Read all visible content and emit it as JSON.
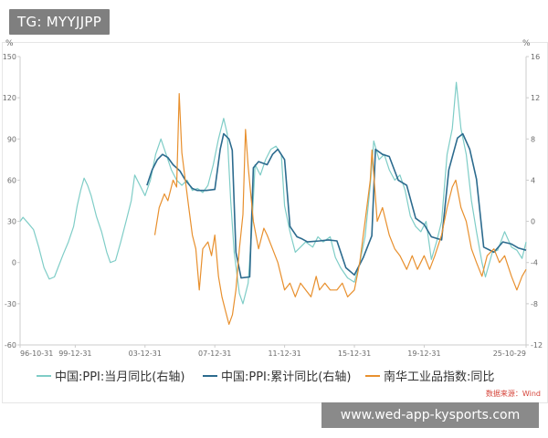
{
  "watermark": {
    "label": "TG: MYYJJPP"
  },
  "footer": {
    "label": "www.wed-app-kysports.com"
  },
  "source_note": "数据来源：Wind",
  "colors": {
    "ppi_yoy": "#7fcdc7",
    "ppi_cum": "#2c6b8e",
    "nanhua": "#e8902e",
    "axis": "#cccccc",
    "tick_text": "#6b6b6b",
    "source": "#d6453b"
  },
  "chart_data": {
    "type": "line",
    "title": "",
    "xlabel": "",
    "ylabel_left": "%",
    "ylabel_right": "%",
    "x_ticks": [
      "96-10-31",
      "99-12-31",
      "03-12-31",
      "07-12-31",
      "11-12-31",
      "15-12-31",
      "19-12-31",
      "25-10-29"
    ],
    "x_tick_years": [
      1996.83,
      1999.99,
      2003.99,
      2007.99,
      2011.99,
      2015.99,
      2019.99,
      2025.83
    ],
    "xlim": [
      1996.83,
      2025.83
    ],
    "ylim_left": [
      -60,
      150
    ],
    "yticks_left": [
      "150",
      "120",
      "90",
      "60",
      "30",
      "0",
      "-30",
      "-60"
    ],
    "ylim_right": [
      -12,
      16
    ],
    "yticks_right": [
      "16",
      "12",
      "8",
      "4",
      "0",
      "-4",
      "-8",
      "-12"
    ],
    "legend_position": "bottom",
    "series": [
      {
        "name": "中国:PPI:当月同比(右轴)",
        "axis": "right",
        "color": "#7fcdc7",
        "points": [
          [
            1996.83,
            0.0
          ],
          [
            1997.0,
            0.4
          ],
          [
            1997.3,
            -0.2
          ],
          [
            1997.6,
            -0.8
          ],
          [
            1997.9,
            -2.5
          ],
          [
            1998.2,
            -4.5
          ],
          [
            1998.5,
            -5.6
          ],
          [
            1998.8,
            -5.4
          ],
          [
            1999.0,
            -4.5
          ],
          [
            1999.3,
            -3.2
          ],
          [
            1999.6,
            -2.0
          ],
          [
            1999.9,
            -0.5
          ],
          [
            2000.1,
            1.5
          ],
          [
            2000.3,
            3.0
          ],
          [
            2000.5,
            4.2
          ],
          [
            2000.7,
            3.5
          ],
          [
            2000.9,
            2.5
          ],
          [
            2001.2,
            0.5
          ],
          [
            2001.5,
            -1.0
          ],
          [
            2001.8,
            -3.0
          ],
          [
            2002.0,
            -4.0
          ],
          [
            2002.3,
            -3.8
          ],
          [
            2002.6,
            -2.0
          ],
          [
            2002.9,
            0.0
          ],
          [
            2003.2,
            2.0
          ],
          [
            2003.4,
            4.5
          ],
          [
            2003.7,
            3.5
          ],
          [
            2003.99,
            2.5
          ],
          [
            2004.3,
            4.0
          ],
          [
            2004.6,
            6.5
          ],
          [
            2004.9,
            8.0
          ],
          [
            2005.2,
            6.5
          ],
          [
            2005.5,
            5.0
          ],
          [
            2005.8,
            4.0
          ],
          [
            2006.1,
            3.5
          ],
          [
            2006.4,
            4.0
          ],
          [
            2006.7,
            3.0
          ],
          [
            2007.0,
            3.2
          ],
          [
            2007.3,
            2.8
          ],
          [
            2007.6,
            3.5
          ],
          [
            2007.9,
            5.5
          ],
          [
            2008.2,
            8.0
          ],
          [
            2008.5,
            10.0
          ],
          [
            2008.7,
            8.5
          ],
          [
            2008.9,
            2.0
          ],
          [
            2009.1,
            -3.0
          ],
          [
            2009.4,
            -7.0
          ],
          [
            2009.6,
            -8.0
          ],
          [
            2009.9,
            -6.0
          ],
          [
            2010.1,
            -1.0
          ],
          [
            2010.3,
            5.5
          ],
          [
            2010.6,
            4.5
          ],
          [
            2010.9,
            6.0
          ],
          [
            2011.2,
            7.0
          ],
          [
            2011.5,
            7.3
          ],
          [
            2011.8,
            6.5
          ],
          [
            2011.99,
            1.5
          ],
          [
            2012.3,
            -1.0
          ],
          [
            2012.6,
            -3.0
          ],
          [
            2012.9,
            -2.5
          ],
          [
            2013.2,
            -2.0
          ],
          [
            2013.6,
            -2.5
          ],
          [
            2013.9,
            -1.5
          ],
          [
            2014.2,
            -2.0
          ],
          [
            2014.6,
            -1.5
          ],
          [
            2014.9,
            -3.5
          ],
          [
            2015.2,
            -4.5
          ],
          [
            2015.6,
            -5.5
          ],
          [
            2015.99,
            -5.9
          ],
          [
            2016.3,
            -4.0
          ],
          [
            2016.6,
            -1.5
          ],
          [
            2016.9,
            3.5
          ],
          [
            2017.1,
            7.8
          ],
          [
            2017.4,
            6.0
          ],
          [
            2017.7,
            6.5
          ],
          [
            2017.99,
            5.0
          ],
          [
            2018.3,
            4.0
          ],
          [
            2018.6,
            4.5
          ],
          [
            2018.9,
            3.0
          ],
          [
            2019.2,
            0.5
          ],
          [
            2019.5,
            -0.5
          ],
          [
            2019.8,
            -1.0
          ],
          [
            2020.1,
            0.0
          ],
          [
            2020.4,
            -3.7
          ],
          [
            2020.7,
            -2.0
          ],
          [
            2020.99,
            0.0
          ],
          [
            2021.3,
            6.5
          ],
          [
            2021.6,
            9.0
          ],
          [
            2021.83,
            13.5
          ],
          [
            2022.1,
            9.0
          ],
          [
            2022.4,
            6.5
          ],
          [
            2022.7,
            2.0
          ],
          [
            2022.99,
            -1.0
          ],
          [
            2023.3,
            -4.0
          ],
          [
            2023.5,
            -5.4
          ],
          [
            2023.9,
            -3.0
          ],
          [
            2024.2,
            -2.8
          ],
          [
            2024.6,
            -1.0
          ],
          [
            2024.99,
            -2.5
          ],
          [
            2025.3,
            -2.8
          ],
          [
            2025.6,
            -3.6
          ],
          [
            2025.83,
            -2.0
          ]
        ]
      },
      {
        "name": "中国:PPI:累计同比(右轴)",
        "axis": "right",
        "color": "#2c6b8e",
        "points": [
          [
            2004.1,
            3.5
          ],
          [
            2004.4,
            5.0
          ],
          [
            2004.7,
            6.0
          ],
          [
            2004.99,
            6.5
          ],
          [
            2005.3,
            6.2
          ],
          [
            2005.6,
            5.5
          ],
          [
            2005.99,
            4.9
          ],
          [
            2006.3,
            4.0
          ],
          [
            2006.7,
            3.2
          ],
          [
            2006.99,
            3.0
          ],
          [
            2007.5,
            3.0
          ],
          [
            2007.99,
            3.1
          ],
          [
            2008.3,
            7.0
          ],
          [
            2008.5,
            8.5
          ],
          [
            2008.8,
            8.0
          ],
          [
            2008.99,
            6.9
          ],
          [
            2009.2,
            -3.0
          ],
          [
            2009.5,
            -5.5
          ],
          [
            2009.99,
            -5.4
          ],
          [
            2010.2,
            5.2
          ],
          [
            2010.5,
            5.8
          ],
          [
            2010.99,
            5.5
          ],
          [
            2011.3,
            6.5
          ],
          [
            2011.6,
            7.0
          ],
          [
            2011.99,
            6.0
          ],
          [
            2012.3,
            -0.5
          ],
          [
            2012.7,
            -1.5
          ],
          [
            2012.99,
            -1.7
          ],
          [
            2013.3,
            -2.0
          ],
          [
            2013.99,
            -1.9
          ],
          [
            2014.5,
            -1.8
          ],
          [
            2014.99,
            -1.9
          ],
          [
            2015.5,
            -4.5
          ],
          [
            2015.99,
            -5.2
          ],
          [
            2016.5,
            -3.5
          ],
          [
            2016.99,
            -1.4
          ],
          [
            2017.2,
            7.0
          ],
          [
            2017.6,
            6.5
          ],
          [
            2017.99,
            6.3
          ],
          [
            2018.5,
            4.0
          ],
          [
            2018.99,
            3.5
          ],
          [
            2019.5,
            0.3
          ],
          [
            2019.99,
            -0.3
          ],
          [
            2020.4,
            -1.5
          ],
          [
            2020.99,
            -1.8
          ],
          [
            2021.4,
            5.0
          ],
          [
            2021.9,
            8.1
          ],
          [
            2022.2,
            8.5
          ],
          [
            2022.6,
            7.0
          ],
          [
            2022.99,
            4.1
          ],
          [
            2023.4,
            -2.5
          ],
          [
            2023.99,
            -3.0
          ],
          [
            2024.5,
            -2.0
          ],
          [
            2024.99,
            -2.2
          ],
          [
            2025.4,
            -2.6
          ],
          [
            2025.83,
            -2.8
          ]
        ]
      },
      {
        "name": "南华工业品指数:同比",
        "axis": "left",
        "color": "#e8902e",
        "points": [
          [
            2004.55,
            20
          ],
          [
            2004.8,
            40
          ],
          [
            2005.1,
            50
          ],
          [
            2005.3,
            45
          ],
          [
            2005.6,
            60
          ],
          [
            2005.8,
            55
          ],
          [
            2005.95,
            123
          ],
          [
            2006.1,
            80
          ],
          [
            2006.3,
            60
          ],
          [
            2006.5,
            40
          ],
          [
            2006.7,
            20
          ],
          [
            2006.9,
            10
          ],
          [
            2007.1,
            -20
          ],
          [
            2007.3,
            10
          ],
          [
            2007.6,
            15
          ],
          [
            2007.8,
            5
          ],
          [
            2007.99,
            20
          ],
          [
            2008.2,
            -10
          ],
          [
            2008.4,
            -25
          ],
          [
            2008.6,
            -35
          ],
          [
            2008.8,
            -45
          ],
          [
            2009.0,
            -38
          ],
          [
            2009.2,
            -20
          ],
          [
            2009.4,
            10
          ],
          [
            2009.6,
            35
          ],
          [
            2009.75,
            97
          ],
          [
            2009.9,
            70
          ],
          [
            2010.2,
            30
          ],
          [
            2010.5,
            10
          ],
          [
            2010.8,
            25
          ],
          [
            2010.99,
            20
          ],
          [
            2011.3,
            10
          ],
          [
            2011.6,
            0
          ],
          [
            2011.99,
            -20
          ],
          [
            2012.3,
            -15
          ],
          [
            2012.6,
            -25
          ],
          [
            2012.9,
            -15
          ],
          [
            2013.2,
            -20
          ],
          [
            2013.5,
            -25
          ],
          [
            2013.8,
            -10
          ],
          [
            2013.99,
            -20
          ],
          [
            2014.3,
            -15
          ],
          [
            2014.6,
            -20
          ],
          [
            2014.99,
            -20
          ],
          [
            2015.3,
            -15
          ],
          [
            2015.6,
            -25
          ],
          [
            2015.99,
            -20
          ],
          [
            2016.3,
            0
          ],
          [
            2016.6,
            30
          ],
          [
            2016.9,
            60
          ],
          [
            2017.0,
            82
          ],
          [
            2017.3,
            30
          ],
          [
            2017.6,
            40
          ],
          [
            2017.99,
            20
          ],
          [
            2018.3,
            10
          ],
          [
            2018.6,
            5
          ],
          [
            2018.99,
            -5
          ],
          [
            2019.3,
            5
          ],
          [
            2019.6,
            -5
          ],
          [
            2019.99,
            5
          ],
          [
            2020.3,
            -5
          ],
          [
            2020.6,
            5
          ],
          [
            2020.99,
            20
          ],
          [
            2021.3,
            40
          ],
          [
            2021.6,
            55
          ],
          [
            2021.8,
            60
          ],
          [
            2022.1,
            40
          ],
          [
            2022.4,
            30
          ],
          [
            2022.7,
            10
          ],
          [
            2022.99,
            0
          ],
          [
            2023.3,
            -10
          ],
          [
            2023.6,
            5
          ],
          [
            2023.99,
            10
          ],
          [
            2024.3,
            0
          ],
          [
            2024.6,
            5
          ],
          [
            2024.99,
            -10
          ],
          [
            2025.3,
            -20
          ],
          [
            2025.6,
            -10
          ],
          [
            2025.83,
            -5
          ]
        ]
      }
    ]
  }
}
